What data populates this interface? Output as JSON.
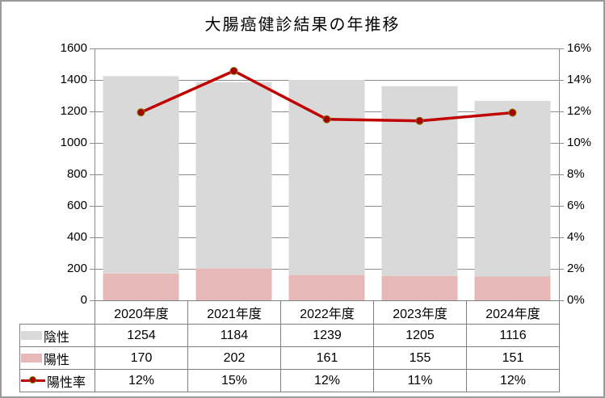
{
  "chart_data": {
    "type": "combo",
    "title": "大腸癌健診結果の年推移",
    "categories": [
      "2020年度",
      "2021年度",
      "2022年度",
      "2023年度",
      "2024年度"
    ],
    "series": [
      {
        "id": "negative",
        "name": "陰性",
        "type": "bar-stacked",
        "stack_order": 2,
        "axis": "left",
        "color": "#d9d9d9",
        "values": [
          1254,
          1184,
          1239,
          1205,
          1116
        ]
      },
      {
        "id": "positive",
        "name": "陽性",
        "type": "bar-stacked",
        "stack_order": 1,
        "axis": "left",
        "color": "#e6b9b8",
        "values": [
          170,
          202,
          161,
          155,
          151
        ]
      },
      {
        "id": "positive-rate",
        "name": "陽性率",
        "type": "line",
        "axis": "right",
        "color": "#c00000",
        "marker_fill": "#a80000",
        "marker_stroke": "#7f7f00",
        "values": [
          11.94,
          14.57,
          11.5,
          11.4,
          11.92
        ],
        "display_values": [
          "12%",
          "15%",
          "12%",
          "11%",
          "12%"
        ]
      }
    ],
    "left_axis": {
      "min": 0,
      "max": 1600,
      "step": 200,
      "ticks": [
        "0",
        "200",
        "400",
        "600",
        "800",
        "1000",
        "1200",
        "1400",
        "1600"
      ]
    },
    "right_axis": {
      "min": 0,
      "max": 16,
      "step": 2,
      "ticks": [
        "0%",
        "2%",
        "4%",
        "6%",
        "8%",
        "10%",
        "12%",
        "14%",
        "16%"
      ]
    },
    "grid": true,
    "legend_position": "data-table-left"
  },
  "data_table": {
    "rows": [
      {
        "series_id": "negative",
        "key": "bar",
        "color": "#d9d9d9",
        "label": "陰性",
        "values": [
          "1254",
          "1184",
          "1239",
          "1205",
          "1116"
        ]
      },
      {
        "series_id": "positive",
        "key": "bar",
        "color": "#e6b9b8",
        "label": "陽性",
        "values": [
          "170",
          "202",
          "161",
          "155",
          "151"
        ]
      },
      {
        "series_id": "positive-rate",
        "key": "line",
        "color": "#c00000",
        "label": "陽性率",
        "values": [
          "12%",
          "15%",
          "12%",
          "11%",
          "12%"
        ]
      }
    ]
  },
  "colors": {
    "gridline": "#8c8c8c",
    "axis_line": "#8c8c8c",
    "table_border": "#7f7f7f",
    "outer_border": "#9a9a9a",
    "bar_negative": "#d9d9d9",
    "bar_positive": "#e6b9b8",
    "line": "#c00000",
    "text": "#000000"
  }
}
